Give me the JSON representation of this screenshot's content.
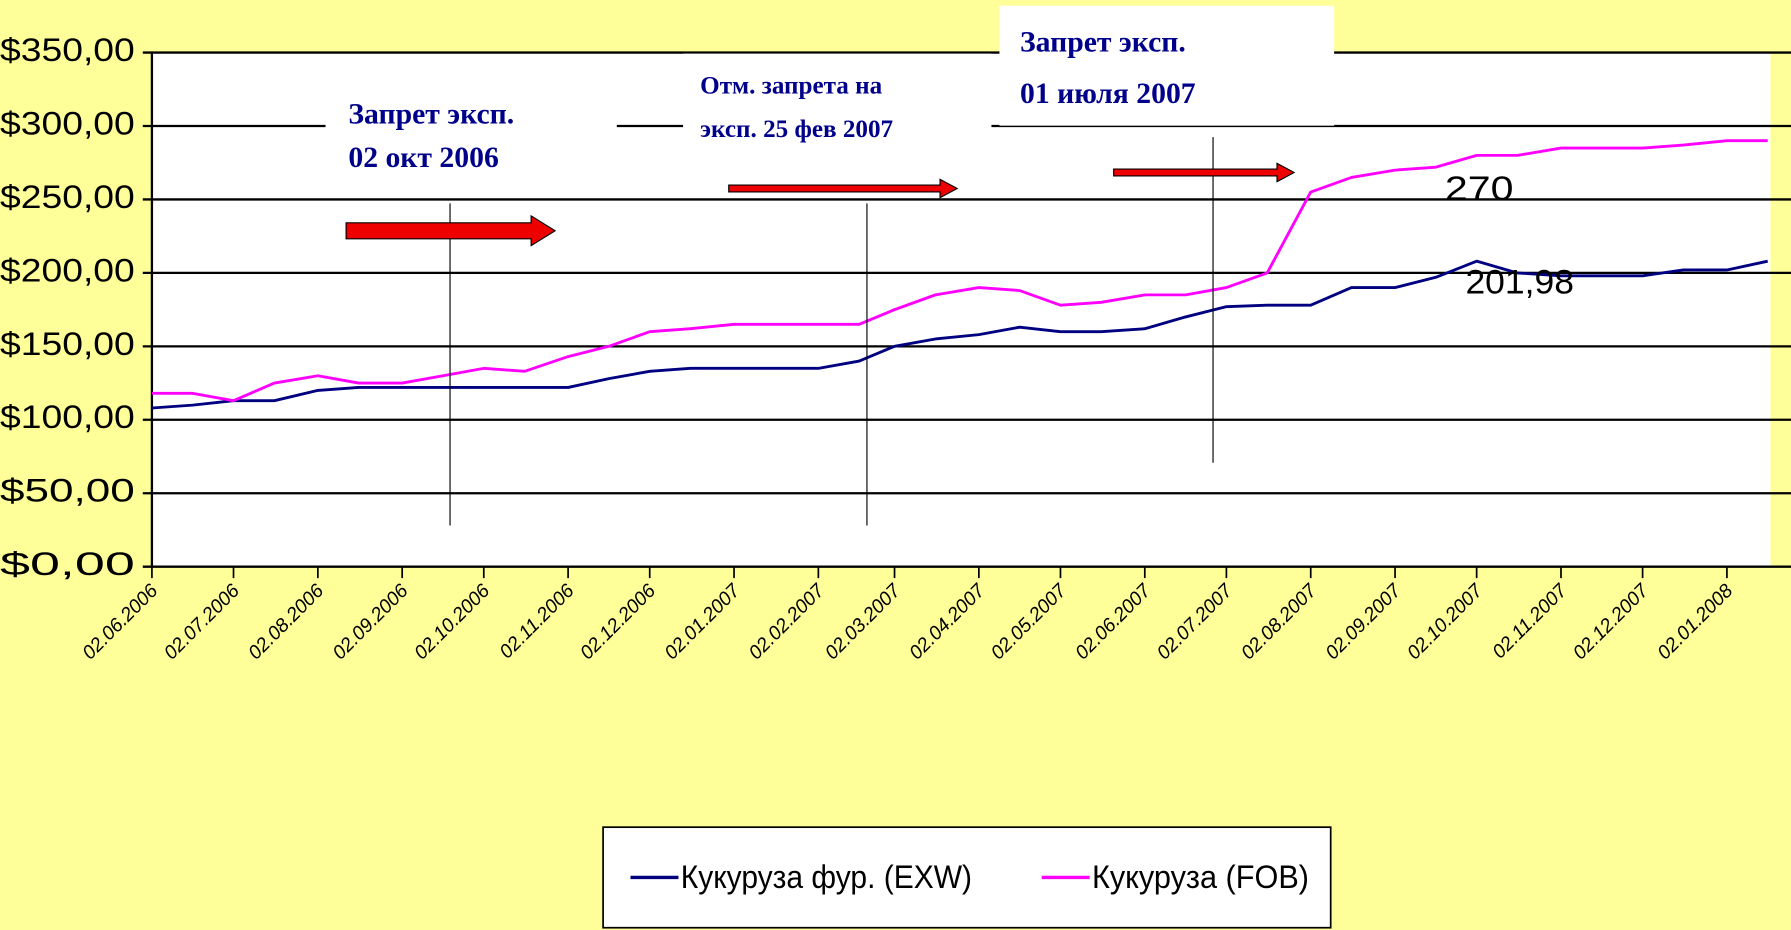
{
  "chart_data": {
    "type": "line",
    "x": [
      "02.06.2006",
      "17.06.2006",
      "02.07.2006",
      "17.07.2006",
      "02.08.2006",
      "17.08.2006",
      "02.09.2006",
      "17.09.2006",
      "02.10.2006",
      "17.10.2006",
      "02.11.2006",
      "17.11.2006",
      "02.12.2006",
      "17.12.2006",
      "02.01.2007",
      "17.01.2007",
      "02.02.2007",
      "17.02.2007",
      "02.03.2007",
      "17.03.2007",
      "02.04.2007",
      "17.04.2007",
      "02.05.2007",
      "17.05.2007",
      "02.06.2007",
      "17.06.2007",
      "02.07.2007",
      "17.07.2007",
      "02.08.2007",
      "17.08.2007",
      "02.09.2007",
      "17.09.2007",
      "02.10.2007",
      "17.10.2007",
      "02.11.2007",
      "17.11.2007",
      "02.12.2007",
      "17.12.2007",
      "02.01.2008",
      "17.01.2008"
    ],
    "series": [
      {
        "name": "Кукуруза фур. (EXW)",
        "color": "#000080",
        "values": [
          108,
          110,
          113,
          113,
          120,
          122,
          122,
          122,
          122,
          122,
          122,
          128,
          133,
          135,
          135,
          135,
          135,
          140,
          150,
          155,
          158,
          163,
          160,
          160,
          162,
          170,
          177,
          178,
          178,
          190,
          190,
          197,
          208,
          200,
          198,
          198,
          198,
          202,
          202,
          208
        ]
      },
      {
        "name": "Кукуруза (FOB)",
        "color": "#ff00ff",
        "values": [
          118,
          118,
          113,
          125,
          130,
          125,
          125,
          130,
          135,
          133,
          143,
          150,
          160,
          162,
          165,
          165,
          165,
          165,
          175,
          185,
          190,
          188,
          178,
          180,
          185,
          185,
          190,
          200,
          255,
          265,
          270,
          272,
          280,
          280,
          285,
          285,
          285,
          287,
          290,
          290
        ]
      }
    ],
    "xlim": [
      "02.06.2006",
      "18.01.2008"
    ],
    "xticks": [
      "02.06.2006",
      "02.07.2006",
      "02.08.2006",
      "02.09.2006",
      "02.10.2006",
      "02.11.2006",
      "02.12.2006",
      "02.01.2007",
      "02.02.2007",
      "02.03.2007",
      "02.04.2007",
      "02.05.2007",
      "02.06.2007",
      "02.07.2007",
      "02.08.2007",
      "02.09.2007",
      "02.10.2007",
      "02.11.2007",
      "02.12.2007",
      "02.01.2008"
    ],
    "ylim": [
      0,
      350
    ],
    "yticks": [
      {
        "value": 0,
        "label": "$0,00"
      },
      {
        "value": 50,
        "label": "$50,00"
      },
      {
        "value": 100,
        "label": "$100,00"
      },
      {
        "value": 150,
        "label": "$150,00"
      },
      {
        "value": 200,
        "label": "$200,00"
      },
      {
        "value": 250,
        "label": "$250,00"
      },
      {
        "value": 300,
        "label": "$300,00"
      },
      {
        "value": 350,
        "label": "$350,00"
      }
    ],
    "grid": true,
    "legend": "bottom",
    "annotations": [
      {
        "lines": [
          "Запрет эксп.",
          "02 окт 2006"
        ]
      },
      {
        "lines": [
          "Отм. запрета на",
          "эксп. 25 фев 2007"
        ]
      },
      {
        "lines": [
          "Запрет эксп.",
          "01 июля 2007"
        ]
      },
      {
        "text": "270"
      },
      {
        "text": "201,98"
      }
    ]
  }
}
